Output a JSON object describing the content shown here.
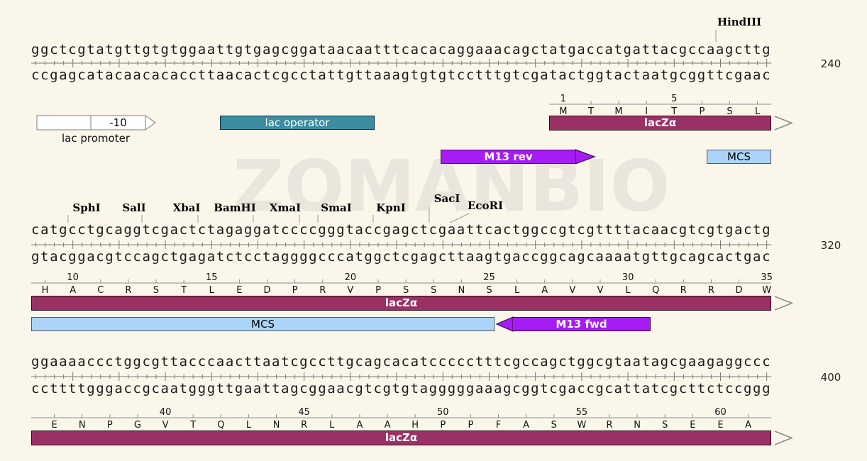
{
  "watermark": "ZOMANBIO",
  "colors": {
    "background": "#faf6ea",
    "sequence_text": "#1b1b1b",
    "ruler": "#787878",
    "amino_ruler": "#8e8e8e",
    "leader_line": "#9a9a9a",
    "chevron": "#8a8a8a",
    "lacz_fill": "#9a3164",
    "lacz_border": "#2a0a18",
    "operator_fill": "#3b8d9f",
    "operator_border": "#06323d",
    "primer_fill": "#a51cf5",
    "primer_border": "#3f0b49",
    "mcs_fill": "#abd4f8",
    "mcs_border": "#4f5a61",
    "promoter_fill": "#ffffff",
    "promoter_border": "#7d7d7d"
  },
  "sequence": {
    "rows": [
      {
        "top": "ggctcgtatgttgtgtggaattgtgagcggataacaatttcacacaggaaacagctatgaccatgattacgccaagcttg",
        "bottom": "ccgagcatacaacacaccttaacactcgcctattgttaaagtgtgtcctttgtcgatactggtactaatgcggttcgaac",
        "pos_label": "240"
      },
      {
        "top": "catgcctgcaggtcgactctagaggatccccgggtaccgagctcgaattcactggccgtcgttttacaacgtcgtgactg",
        "bottom": "gtacggacgtccagctgagatctcctaggggcccatggctcgagcttaagtgaccggcagcaaaatgttgcagcactgac",
        "pos_label": "320"
      },
      {
        "top": "ggaaaaccctggcgttacccaacttaatcgccttgcagcacatccccctttcgccagctggcgtaatagcgaagaggccc",
        "bottom": "ccttttgggaccgcaatgggttgaattagcggaacgtcgtgtagggggaaagcggtcgaccgcattatcgcttctccggg",
        "pos_label": "400"
      }
    ]
  },
  "cds": {
    "label": "lacZα",
    "amino_rows": [
      {
        "first_residue": 1,
        "letters": "MTMITPSL",
        "numbers": [
          1,
          5
        ]
      },
      {
        "first_residue": 9,
        "letters": "HACRSTLEDPRVPSSNSLAVVLQRRDW",
        "numbers": [
          10,
          15,
          20,
          25,
          30,
          35
        ]
      },
      {
        "first_residue": 36,
        "letters": "ENPGVTQLNRLAAHPPFASWRNSEEA",
        "numbers": [
          40,
          45,
          50,
          55,
          60
        ]
      }
    ]
  },
  "enzymes": [
    {
      "name": "HindIII"
    },
    {
      "name": "SphI"
    },
    {
      "name": "SalI"
    },
    {
      "name": "XbaI"
    },
    {
      "name": "BamHI"
    },
    {
      "name": "XmaI"
    },
    {
      "name": "SmaI"
    },
    {
      "name": "KpnI"
    },
    {
      "name": "SacI"
    },
    {
      "name": "EcoRI"
    }
  ],
  "features": [
    {
      "label": "lac promoter",
      "box_label": "-10"
    },
    {
      "label": "lac operator"
    },
    {
      "label": "lacZα"
    },
    {
      "label": "MCS"
    },
    {
      "label": "M13 rev"
    },
    {
      "label": "lacZα"
    },
    {
      "label": "MCS"
    },
    {
      "label": "M13 fwd"
    },
    {
      "label": "lacZα"
    }
  ]
}
